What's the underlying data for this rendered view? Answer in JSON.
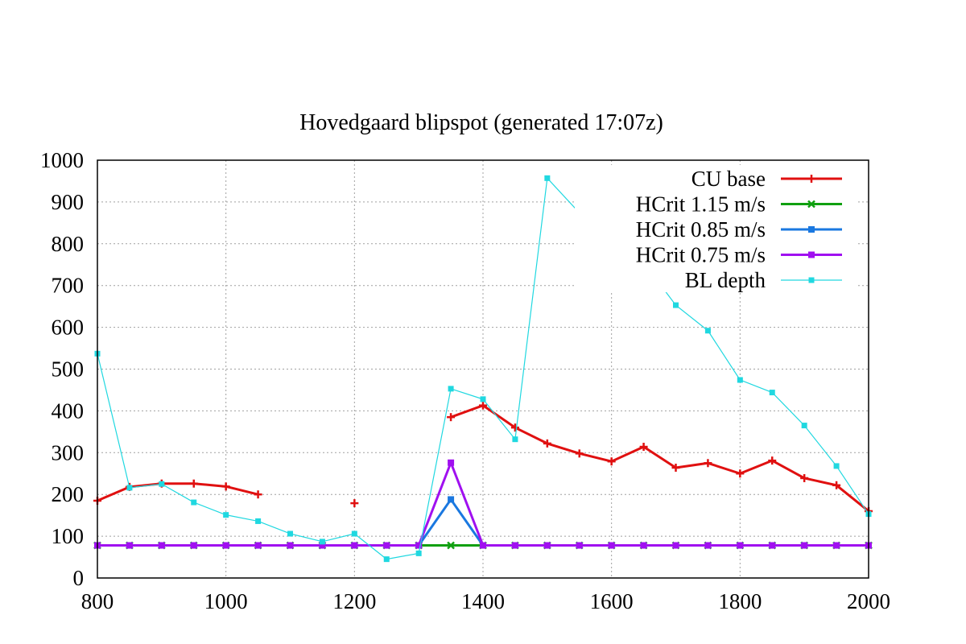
{
  "chart_data": {
    "type": "line",
    "title": "Hovedgaard  blipspot  (generated  17:07z)",
    "xlabel": "",
    "ylabel": "",
    "xlim": [
      800,
      2000
    ],
    "ylim": [
      0,
      1000
    ],
    "x_ticks": [
      800,
      1000,
      1200,
      1400,
      1600,
      1800,
      2000
    ],
    "y_ticks": [
      0,
      100,
      200,
      300,
      400,
      500,
      600,
      700,
      800,
      900,
      1000
    ],
    "grid": true,
    "legend_position": "top-right",
    "series": [
      {
        "name": "CU  base",
        "color": "#e01010",
        "marker": "plus",
        "width": 3,
        "points": [
          [
            800,
            185
          ],
          [
            850,
            218
          ],
          [
            900,
            226
          ],
          [
            950,
            226
          ],
          [
            1000,
            219
          ],
          [
            1050,
            200
          ],
          [
            1200,
            179
          ],
          [
            1350,
            385
          ],
          [
            1400,
            413
          ],
          [
            1450,
            360
          ],
          [
            1500,
            322
          ],
          [
            1550,
            298
          ],
          [
            1600,
            279
          ],
          [
            1650,
            314
          ],
          [
            1700,
            264
          ],
          [
            1750,
            275
          ],
          [
            1800,
            250
          ],
          [
            1850,
            281
          ],
          [
            1900,
            239
          ],
          [
            1950,
            222
          ],
          [
            2000,
            160
          ]
        ],
        "segments": [
          [
            800,
            1050
          ],
          [
            1200,
            1200
          ],
          [
            1350,
            2000
          ]
        ]
      },
      {
        "name": "HCrit  1.15  m/s",
        "color": "#10a010",
        "marker": "x",
        "width": 3,
        "points": [
          [
            800,
            78
          ],
          [
            850,
            78
          ],
          [
            900,
            78
          ],
          [
            950,
            78
          ],
          [
            1000,
            78
          ],
          [
            1050,
            78
          ],
          [
            1100,
            78
          ],
          [
            1150,
            78
          ],
          [
            1200,
            78
          ],
          [
            1250,
            78
          ],
          [
            1300,
            78
          ],
          [
            1350,
            78
          ],
          [
            1400,
            78
          ],
          [
            1450,
            78
          ],
          [
            1500,
            78
          ],
          [
            1550,
            78
          ],
          [
            1600,
            78
          ],
          [
            1650,
            78
          ],
          [
            1700,
            78
          ],
          [
            1750,
            78
          ],
          [
            1800,
            78
          ],
          [
            1850,
            78
          ],
          [
            1900,
            78
          ],
          [
            1950,
            78
          ],
          [
            2000,
            78
          ]
        ]
      },
      {
        "name": "HCrit  0.85  m/s",
        "color": "#1a78e0",
        "marker": "square",
        "width": 3,
        "points": [
          [
            800,
            78
          ],
          [
            850,
            78
          ],
          [
            900,
            78
          ],
          [
            950,
            78
          ],
          [
            1000,
            78
          ],
          [
            1050,
            78
          ],
          [
            1100,
            78
          ],
          [
            1150,
            78
          ],
          [
            1200,
            78
          ],
          [
            1250,
            78
          ],
          [
            1300,
            78
          ],
          [
            1350,
            188
          ],
          [
            1400,
            78
          ],
          [
            1450,
            78
          ],
          [
            1500,
            78
          ],
          [
            1550,
            78
          ],
          [
            1600,
            78
          ],
          [
            1650,
            78
          ],
          [
            1700,
            78
          ],
          [
            1750,
            78
          ],
          [
            1800,
            78
          ],
          [
            1850,
            78
          ],
          [
            1900,
            78
          ],
          [
            1950,
            78
          ],
          [
            2000,
            78
          ]
        ]
      },
      {
        "name": "HCrit  0.75  m/s",
        "color": "#a010f0",
        "marker": "square",
        "width": 3,
        "points": [
          [
            800,
            78
          ],
          [
            850,
            78
          ],
          [
            900,
            78
          ],
          [
            950,
            78
          ],
          [
            1000,
            78
          ],
          [
            1050,
            78
          ],
          [
            1100,
            78
          ],
          [
            1150,
            78
          ],
          [
            1200,
            78
          ],
          [
            1250,
            78
          ],
          [
            1300,
            78
          ],
          [
            1350,
            276
          ],
          [
            1400,
            78
          ],
          [
            1450,
            78
          ],
          [
            1500,
            78
          ],
          [
            1550,
            78
          ],
          [
            1600,
            78
          ],
          [
            1650,
            78
          ],
          [
            1700,
            78
          ],
          [
            1750,
            78
          ],
          [
            1800,
            78
          ],
          [
            1850,
            78
          ],
          [
            1900,
            78
          ],
          [
            1950,
            78
          ],
          [
            2000,
            78
          ]
        ]
      },
      {
        "name": "BL  depth",
        "color": "#20d8e0",
        "marker": "smallsquare",
        "width": 1.2,
        "points": [
          [
            800,
            537
          ],
          [
            850,
            216
          ],
          [
            900,
            225
          ],
          [
            950,
            181
          ],
          [
            1000,
            151
          ],
          [
            1050,
            136
          ],
          [
            1100,
            106
          ],
          [
            1150,
            87
          ],
          [
            1200,
            106
          ],
          [
            1250,
            45
          ],
          [
            1300,
            59
          ],
          [
            1350,
            453
          ],
          [
            1400,
            428
          ],
          [
            1450,
            332
          ],
          [
            1500,
            957
          ],
          [
            1550,
            874
          ],
          [
            1600,
            813
          ],
          [
            1650,
            755
          ],
          [
            1700,
            653
          ],
          [
            1750,
            592
          ],
          [
            1800,
            474
          ],
          [
            1850,
            444
          ],
          [
            1900,
            365
          ],
          [
            1950,
            268
          ],
          [
            2000,
            153
          ]
        ]
      }
    ]
  }
}
